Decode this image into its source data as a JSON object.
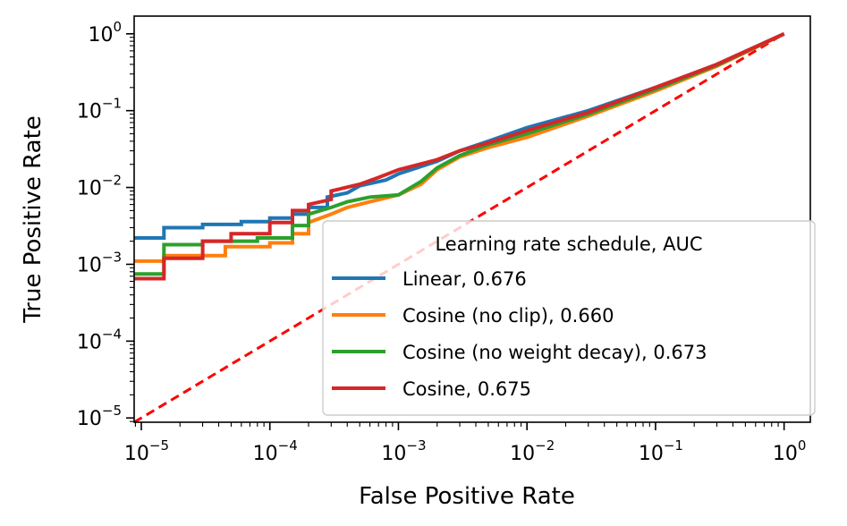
{
  "chart_data": {
    "type": "line",
    "xlabel": "False Positive Rate",
    "ylabel": "True Positive Rate",
    "xscale": "log",
    "yscale": "log",
    "xlim": [
      8.8e-06,
      1.6
    ],
    "ylim": [
      8.8e-06,
      1.7
    ],
    "xticks": [
      {
        "value": 1e-05,
        "base": "10",
        "exp": "−5"
      },
      {
        "value": 0.0001,
        "base": "10",
        "exp": "−4"
      },
      {
        "value": 0.001,
        "base": "10",
        "exp": "−3"
      },
      {
        "value": 0.01,
        "base": "10",
        "exp": "−2"
      },
      {
        "value": 0.1,
        "base": "10",
        "exp": "−1"
      },
      {
        "value": 1,
        "base": "10",
        "exp": "0"
      }
    ],
    "yticks": [
      {
        "value": 1e-05,
        "base": "10",
        "exp": "−5"
      },
      {
        "value": 0.0001,
        "base": "10",
        "exp": "−4"
      },
      {
        "value": 0.001,
        "base": "10",
        "exp": "−3"
      },
      {
        "value": 0.01,
        "base": "10",
        "exp": "−2"
      },
      {
        "value": 0.1,
        "base": "10",
        "exp": "−1"
      },
      {
        "value": 1,
        "base": "10",
        "exp": "0"
      }
    ],
    "grid": false,
    "legend": {
      "title": "Learning rate schedule, AUC",
      "position": "lower-right"
    },
    "series": [
      {
        "name": "Linear, 0.676",
        "color": "#1f77b4",
        "points": [
          [
            8.8e-06,
            0.0022
          ],
          [
            1.5e-05,
            0.0022
          ],
          [
            1.5e-05,
            0.003
          ],
          [
            3e-05,
            0.003
          ],
          [
            3e-05,
            0.0033
          ],
          [
            6e-05,
            0.0033
          ],
          [
            6e-05,
            0.0036
          ],
          [
            0.0001,
            0.0036
          ],
          [
            0.0001,
            0.004
          ],
          [
            0.00015,
            0.004
          ],
          [
            0.00015,
            0.0045
          ],
          [
            0.0002,
            0.0045
          ],
          [
            0.0002,
            0.0055
          ],
          [
            0.00028,
            0.0055
          ],
          [
            0.00028,
            0.0075
          ],
          [
            0.0004,
            0.0085
          ],
          [
            0.0005,
            0.0105
          ],
          [
            0.0008,
            0.0125
          ],
          [
            0.001,
            0.015
          ],
          [
            0.002,
            0.022
          ],
          [
            0.003,
            0.03
          ],
          [
            0.005,
            0.04
          ],
          [
            0.01,
            0.06
          ],
          [
            0.03,
            0.1
          ],
          [
            0.1,
            0.2
          ],
          [
            0.3,
            0.4
          ],
          [
            1,
            1
          ]
        ]
      },
      {
        "name": "Cosine (no clip), 0.660",
        "color": "#ff7f0e",
        "points": [
          [
            8.8e-06,
            0.0011
          ],
          [
            1.5e-05,
            0.0011
          ],
          [
            1.5e-05,
            0.0013
          ],
          [
            4.5e-05,
            0.0013
          ],
          [
            4.5e-05,
            0.0017
          ],
          [
            0.0001,
            0.0017
          ],
          [
            0.0001,
            0.0019
          ],
          [
            0.00015,
            0.0019
          ],
          [
            0.00015,
            0.0025
          ],
          [
            0.0002,
            0.0025
          ],
          [
            0.0002,
            0.0035
          ],
          [
            0.0003,
            0.0045
          ],
          [
            0.0004,
            0.0055
          ],
          [
            0.0006,
            0.0065
          ],
          [
            0.001,
            0.008
          ],
          [
            0.0015,
            0.011
          ],
          [
            0.002,
            0.017
          ],
          [
            0.003,
            0.025
          ],
          [
            0.005,
            0.033
          ],
          [
            0.01,
            0.045
          ],
          [
            0.03,
            0.085
          ],
          [
            0.1,
            0.18
          ],
          [
            0.3,
            0.38
          ],
          [
            1,
            1
          ]
        ]
      },
      {
        "name": "Cosine (no weight decay), 0.673",
        "color": "#2ca02c",
        "points": [
          [
            8.8e-06,
            0.00075
          ],
          [
            1.5e-05,
            0.00075
          ],
          [
            1.5e-05,
            0.0018
          ],
          [
            3e-05,
            0.0018
          ],
          [
            3e-05,
            0.002
          ],
          [
            8e-05,
            0.002
          ],
          [
            8e-05,
            0.0022
          ],
          [
            0.00015,
            0.0022
          ],
          [
            0.00015,
            0.0032
          ],
          [
            0.0002,
            0.0032
          ],
          [
            0.0002,
            0.0045
          ],
          [
            0.0003,
            0.0055
          ],
          [
            0.0004,
            0.0065
          ],
          [
            0.0006,
            0.0075
          ],
          [
            0.001,
            0.008
          ],
          [
            0.0015,
            0.012
          ],
          [
            0.002,
            0.018
          ],
          [
            0.003,
            0.026
          ],
          [
            0.005,
            0.036
          ],
          [
            0.01,
            0.05
          ],
          [
            0.03,
            0.09
          ],
          [
            0.1,
            0.19
          ],
          [
            0.3,
            0.39
          ],
          [
            1,
            1
          ]
        ]
      },
      {
        "name": "Cosine, 0.675",
        "color": "#d62728",
        "points": [
          [
            8.8e-06,
            0.00065
          ],
          [
            1.5e-05,
            0.00065
          ],
          [
            1.5e-05,
            0.0012
          ],
          [
            3e-05,
            0.0012
          ],
          [
            3e-05,
            0.002
          ],
          [
            5e-05,
            0.002
          ],
          [
            5e-05,
            0.0025
          ],
          [
            0.0001,
            0.0025
          ],
          [
            0.0001,
            0.0035
          ],
          [
            0.00015,
            0.0035
          ],
          [
            0.00015,
            0.005
          ],
          [
            0.0002,
            0.005
          ],
          [
            0.0002,
            0.006
          ],
          [
            0.0003,
            0.007
          ],
          [
            0.0003,
            0.009
          ],
          [
            0.0005,
            0.011
          ],
          [
            0.0007,
            0.0135
          ],
          [
            0.001,
            0.017
          ],
          [
            0.002,
            0.023
          ],
          [
            0.003,
            0.03
          ],
          [
            0.005,
            0.038
          ],
          [
            0.01,
            0.055
          ],
          [
            0.03,
            0.095
          ],
          [
            0.1,
            0.2
          ],
          [
            0.3,
            0.4
          ],
          [
            1,
            1
          ]
        ]
      }
    ],
    "reference_line": {
      "style": "dashed",
      "color": "#ff0000",
      "points": [
        [
          8.8e-06,
          8.8e-06
        ],
        [
          1,
          1
        ]
      ]
    }
  }
}
